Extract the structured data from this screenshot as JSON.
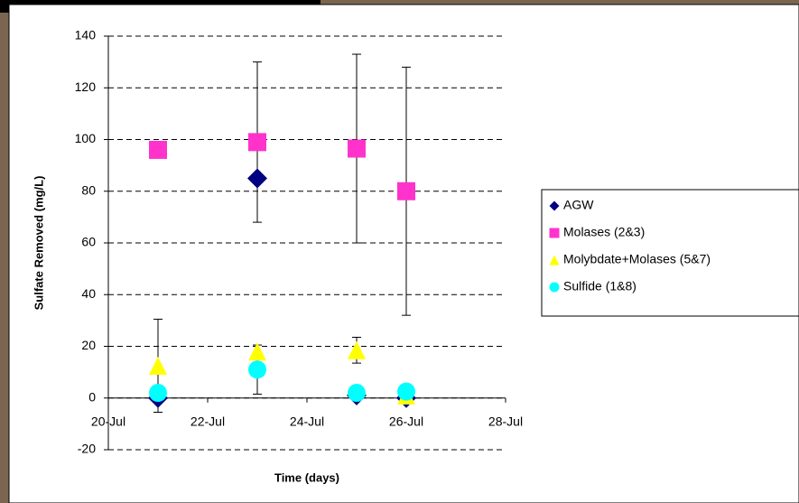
{
  "chart_data": {
    "type": "scatter",
    "ylabel": "Sulfate Removed (mg/L)",
    "xlabel": "Time (days)",
    "xlim": [
      20,
      28
    ],
    "xticks": [
      {
        "value": 20,
        "label": "20-Jul"
      },
      {
        "value": 22,
        "label": "22-Jul"
      },
      {
        "value": 24,
        "label": "24-Jul"
      },
      {
        "value": 26,
        "label": "26-Jul"
      },
      {
        "value": 28,
        "label": "28-Jul"
      }
    ],
    "ylim": [
      -20,
      140
    ],
    "yticks": [
      -20,
      0,
      20,
      40,
      60,
      80,
      100,
      120,
      140
    ],
    "grid": true,
    "legend": "right",
    "x": [
      21,
      23,
      25,
      26
    ],
    "series": [
      {
        "name": "AGW",
        "color": "#000080",
        "marker": "diamond",
        "values": [
          0,
          85,
          1,
          0
        ],
        "errors": [
          null,
          null,
          null,
          null
        ]
      },
      {
        "name": "Molases (2&3)",
        "color": "#ff33cc",
        "marker": "square",
        "values": [
          96,
          99,
          96.5,
          80
        ],
        "errors": [
          null,
          31,
          36.5,
          48
        ]
      },
      {
        "name": "Molybdate+Molases (5&7)",
        "color": "#ffff00",
        "marker": "triangle",
        "values": [
          12.5,
          18,
          18.5,
          1
        ],
        "errors": [
          18,
          null,
          5,
          null
        ]
      },
      {
        "name": "Sulfide (1&8)",
        "color": "#00ffff",
        "marker": "circle",
        "values": [
          2,
          11,
          2,
          2.5
        ],
        "errors": [
          null,
          9.5,
          null,
          null
        ]
      }
    ]
  }
}
